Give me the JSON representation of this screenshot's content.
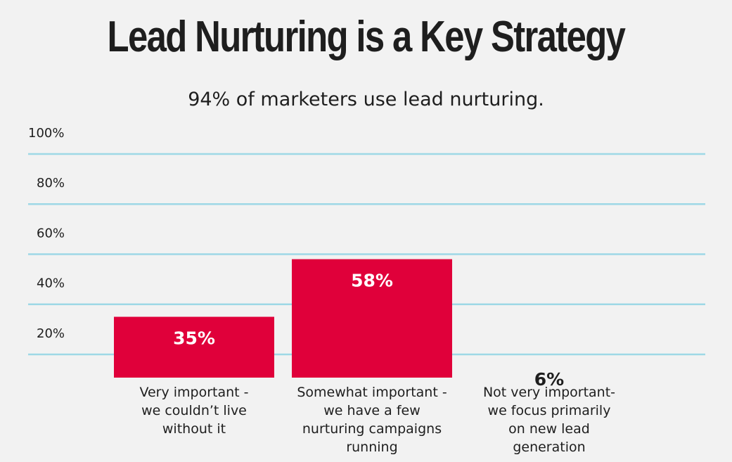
{
  "chart_data": {
    "type": "bar",
    "title": "Lead Nurturing is a Key Strategy",
    "subtitle": "94% of marketers use lead nurturing.",
    "categories": [
      "Very important -\nwe couldn’t live\nwithout it",
      "Somewhat important -\nwe have a few\nnurturing campaigns\nrunning",
      "Not very important-\nwe focus primarily\non new lead\ngeneration"
    ],
    "values": [
      35,
      58,
      6
    ],
    "data_labels": [
      "35%",
      "58%",
      "6%"
    ],
    "ylim": [
      0,
      100
    ],
    "yticks": [
      100,
      80,
      60,
      40,
      20
    ],
    "ytick_labels": [
      "100%",
      "80%",
      "60%",
      "40%",
      "20%"
    ],
    "grid": true,
    "legend": "none",
    "colors": {
      "bar": "#e0003a",
      "grid": "#9ed8e6",
      "label_inside": "#ffffff",
      "label_outside": "#1e1e1e"
    }
  }
}
